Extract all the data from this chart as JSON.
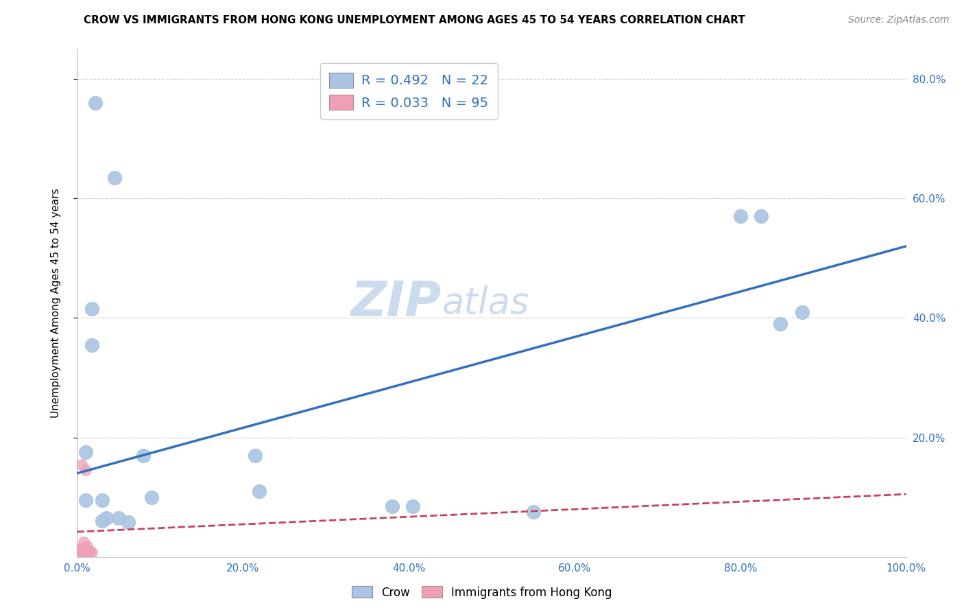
{
  "title": "CROW VS IMMIGRANTS FROM HONG KONG UNEMPLOYMENT AMONG AGES 45 TO 54 YEARS CORRELATION CHART",
  "source": "Source: ZipAtlas.com",
  "ylabel": "Unemployment Among Ages 45 to 54 years",
  "xlim": [
    0.0,
    1.0
  ],
  "ylim": [
    0.0,
    0.85
  ],
  "xtick_pos": [
    0.0,
    0.2,
    0.4,
    0.6,
    0.8,
    1.0
  ],
  "xtick_labels": [
    "0.0%",
    "20.0%",
    "40.0%",
    "60.0%",
    "80.0%",
    "100.0%"
  ],
  "ytick_pos": [
    0.2,
    0.4,
    0.6,
    0.8
  ],
  "ytick_labels": [
    "20.0%",
    "40.0%",
    "60.0%",
    "80.0%"
  ],
  "crow_color": "#aac4e2",
  "crow_line_color": "#3070c0",
  "hk_color": "#f0a0b5",
  "hk_line_color": "#c84060",
  "background_color": "#ffffff",
  "crow_scatter": [
    [
      0.022,
      0.76
    ],
    [
      0.045,
      0.635
    ],
    [
      0.018,
      0.415
    ],
    [
      0.018,
      0.355
    ],
    [
      0.01,
      0.175
    ],
    [
      0.01,
      0.095
    ],
    [
      0.03,
      0.095
    ],
    [
      0.08,
      0.17
    ],
    [
      0.09,
      0.1
    ],
    [
      0.215,
      0.17
    ],
    [
      0.22,
      0.11
    ],
    [
      0.38,
      0.085
    ],
    [
      0.405,
      0.085
    ],
    [
      0.55,
      0.075
    ],
    [
      0.8,
      0.57
    ],
    [
      0.825,
      0.57
    ],
    [
      0.848,
      0.39
    ],
    [
      0.875,
      0.41
    ],
    [
      0.03,
      0.06
    ],
    [
      0.035,
      0.065
    ],
    [
      0.05,
      0.065
    ],
    [
      0.062,
      0.058
    ]
  ],
  "crow_trend_x": [
    0.0,
    1.0
  ],
  "crow_trend_y": [
    0.14,
    0.52
  ],
  "hk_trend_x": [
    0.0,
    1.0
  ],
  "hk_trend_y": [
    0.042,
    0.105
  ],
  "hk_scatter": [
    [
      0.005,
      0.155
    ],
    [
      0.01,
      0.145
    ],
    [
      0.008,
      0.025
    ],
    [
      0.012,
      0.018
    ],
    [
      0.015,
      0.01
    ],
    [
      0.018,
      0.008
    ],
    [
      0.003,
      0.005
    ],
    [
      0.004,
      0.003
    ],
    [
      0.006,
      0.002
    ],
    [
      0.007,
      0.004
    ],
    [
      0.009,
      0.006
    ],
    [
      0.011,
      0.004
    ],
    [
      0.013,
      0.007
    ],
    [
      0.002,
      0.008
    ],
    [
      0.003,
      0.012
    ],
    [
      0.005,
      0.015
    ],
    [
      0.004,
      0.01
    ],
    [
      0.006,
      0.005
    ],
    [
      0.008,
      0.003
    ],
    [
      0.01,
      0.002
    ],
    [
      0.012,
      0.004
    ],
    [
      0.007,
      0.006
    ],
    [
      0.009,
      0.009
    ],
    [
      0.003,
      0.003
    ],
    [
      0.005,
      0.002
    ],
    [
      0.002,
      0.004
    ],
    [
      0.001,
      0.003
    ],
    [
      0.004,
      0.005
    ],
    [
      0.006,
      0.007
    ],
    [
      0.008,
      0.004
    ],
    [
      0.01,
      0.006
    ],
    [
      0.003,
      0.008
    ],
    [
      0.005,
      0.003
    ],
    [
      0.007,
      0.005
    ],
    [
      0.009,
      0.007
    ],
    [
      0.002,
      0.002
    ],
    [
      0.004,
      0.004
    ],
    [
      0.006,
      0.006
    ],
    [
      0.008,
      0.008
    ],
    [
      0.01,
      0.01
    ],
    [
      0.003,
      0.003
    ],
    [
      0.005,
      0.005
    ],
    [
      0.007,
      0.007
    ],
    [
      0.002,
      0.002
    ],
    [
      0.004,
      0.004
    ],
    [
      0.006,
      0.006
    ],
    [
      0.001,
      0.001
    ],
    [
      0.003,
      0.003
    ],
    [
      0.005,
      0.005
    ],
    [
      0.007,
      0.007
    ],
    [
      0.009,
      0.009
    ],
    [
      0.002,
      0.002
    ],
    [
      0.004,
      0.004
    ],
    [
      0.006,
      0.006
    ],
    [
      0.008,
      0.008
    ],
    [
      0.001,
      0.001
    ],
    [
      0.003,
      0.003
    ],
    [
      0.005,
      0.005
    ],
    [
      0.007,
      0.007
    ],
    [
      0.009,
      0.009
    ],
    [
      0.002,
      0.002
    ],
    [
      0.001,
      0.001
    ],
    [
      0.003,
      0.003
    ],
    [
      0.004,
      0.004
    ],
    [
      0.006,
      0.006
    ],
    [
      0.008,
      0.008
    ],
    [
      0.01,
      0.01
    ],
    [
      0.002,
      0.002
    ],
    [
      0.003,
      0.003
    ],
    [
      0.005,
      0.005
    ],
    [
      0.007,
      0.007
    ],
    [
      0.009,
      0.009
    ],
    [
      0.001,
      0.001
    ],
    [
      0.002,
      0.002
    ],
    [
      0.004,
      0.004
    ],
    [
      0.006,
      0.006
    ],
    [
      0.008,
      0.008
    ],
    [
      0.01,
      0.01
    ],
    [
      0.003,
      0.003
    ],
    [
      0.005,
      0.005
    ],
    [
      0.007,
      0.007
    ],
    [
      0.002,
      0.002
    ],
    [
      0.004,
      0.004
    ],
    [
      0.006,
      0.006
    ],
    [
      0.001,
      0.001
    ],
    [
      0.003,
      0.003
    ],
    [
      0.005,
      0.005
    ],
    [
      0.007,
      0.007
    ],
    [
      0.009,
      0.009
    ],
    [
      0.002,
      0.002
    ],
    [
      0.004,
      0.004
    ],
    [
      0.006,
      0.006
    ],
    [
      0.008,
      0.008
    ],
    [
      0.01,
      0.01
    ],
    [
      0.003,
      0.003
    ]
  ],
  "title_fontsize": 11,
  "axis_label_fontsize": 11,
  "tick_fontsize": 11,
  "legend_fontsize": 14,
  "source_fontsize": 10
}
